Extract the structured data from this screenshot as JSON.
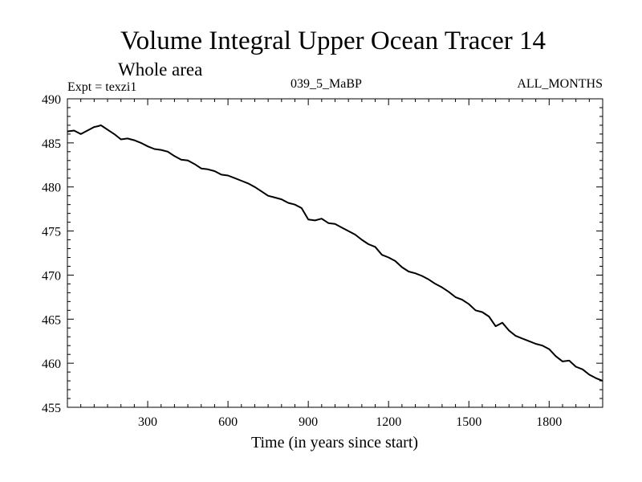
{
  "chart_data": {
    "type": "line",
    "title": "Volume Integral Upper Ocean Tracer 14",
    "subtitle": "Whole area",
    "experiment_label": "Expt = texzi1",
    "run_label": "039_5_MaBP",
    "months_label": "ALL_MONTHS",
    "xlabel": "Time (in years since start)",
    "ylabel": "",
    "xlim": [
      0,
      2000
    ],
    "ylim": [
      455,
      490
    ],
    "xticks": [
      300,
      600,
      900,
      1200,
      1500,
      1800
    ],
    "yticks": [
      455,
      460,
      465,
      470,
      475,
      480,
      485,
      490
    ],
    "grid": false,
    "series": [
      {
        "name": "Tracer 14",
        "color": "#000000",
        "x": [
          0,
          25,
          50,
          75,
          100,
          115,
          125,
          150,
          175,
          200,
          225,
          250,
          275,
          300,
          325,
          350,
          375,
          400,
          425,
          450,
          475,
          500,
          525,
          550,
          575,
          600,
          625,
          650,
          675,
          700,
          725,
          750,
          775,
          800,
          825,
          850,
          875,
          900,
          925,
          950,
          975,
          1000,
          1025,
          1050,
          1075,
          1100,
          1125,
          1150,
          1175,
          1200,
          1225,
          1250,
          1275,
          1300,
          1325,
          1350,
          1375,
          1400,
          1425,
          1450,
          1475,
          1500,
          1525,
          1550,
          1575,
          1600,
          1625,
          1650,
          1675,
          1700,
          1725,
          1750,
          1775,
          1800,
          1825,
          1850,
          1875,
          1900,
          1925,
          1950,
          1975,
          2000
        ],
        "values": [
          486.3,
          486.4,
          486.0,
          486.4,
          486.8,
          486.9,
          487.0,
          486.5,
          486.0,
          485.4,
          485.5,
          485.3,
          485.0,
          484.6,
          484.3,
          484.2,
          484.0,
          483.5,
          483.1,
          483.0,
          482.6,
          482.1,
          482.0,
          481.8,
          481.4,
          481.3,
          481.0,
          480.7,
          480.4,
          480.0,
          479.5,
          479.0,
          478.8,
          478.6,
          478.2,
          478.0,
          477.6,
          476.3,
          476.2,
          476.4,
          475.9,
          475.8,
          475.4,
          475.0,
          474.6,
          474.0,
          473.5,
          473.2,
          472.3,
          472.0,
          471.6,
          470.9,
          470.4,
          470.2,
          469.9,
          469.5,
          469.0,
          468.6,
          468.1,
          467.5,
          467.2,
          466.7,
          466.0,
          465.8,
          465.3,
          464.2,
          464.6,
          463.7,
          463.1,
          462.8,
          462.5,
          462.2,
          462.0,
          461.6,
          460.8,
          460.2,
          460.3,
          459.6,
          459.3,
          458.7,
          458.3,
          458.0
        ]
      }
    ]
  }
}
